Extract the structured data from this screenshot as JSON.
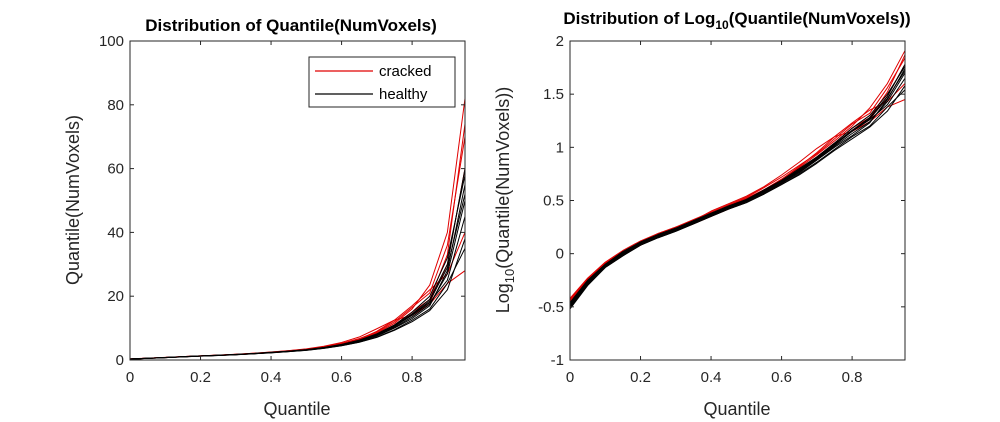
{
  "chart_data": [
    {
      "type": "line",
      "title": "Distribution of Quantile(NumVoxels)",
      "xlabel": "Quantile",
      "ylabel": "Quantile(NumVoxels)",
      "xlim": [
        0,
        0.95
      ],
      "ylim": [
        0,
        100
      ],
      "xticks": [
        "0",
        "0.2",
        "0.4",
        "0.6",
        "0.8"
      ],
      "xtick_values": [
        0,
        0.2,
        0.4,
        0.6,
        0.8
      ],
      "yticks": [
        "0",
        "20",
        "40",
        "60",
        "80",
        "100"
      ],
      "ytick_values": [
        0,
        20,
        40,
        60,
        80,
        100
      ],
      "grid": false,
      "legend": {
        "position": "top-right",
        "entries": [
          {
            "label": "cracked",
            "color": "#e00000"
          },
          {
            "label": "healthy",
            "color": "#000000"
          }
        ]
      },
      "x": [
        0,
        0.05,
        0.1,
        0.15,
        0.2,
        0.25,
        0.3,
        0.35,
        0.4,
        0.45,
        0.5,
        0.55,
        0.6,
        0.65,
        0.7,
        0.75,
        0.8,
        0.85,
        0.9,
        0.95
      ],
      "series": [
        {
          "group": "cracked",
          "values": [
            0.32,
            0.55,
            0.8,
            1.05,
            1.3,
            1.5,
            1.75,
            2.05,
            2.4,
            2.8,
            3.3,
            4.0,
            5.0,
            6.4,
            8.5,
            11.5,
            16.0,
            23.5,
            40.0,
            82.0
          ]
        },
        {
          "group": "cracked",
          "values": [
            0.3,
            0.52,
            0.76,
            1.0,
            1.25,
            1.45,
            1.7,
            2.0,
            2.35,
            2.75,
            3.2,
            3.9,
            4.9,
            6.2,
            8.2,
            11.0,
            15.0,
            19.0,
            33.0,
            74.0
          ]
        },
        {
          "group": "cracked",
          "values": [
            0.32,
            0.54,
            0.78,
            1.03,
            1.27,
            1.48,
            1.72,
            2.02,
            2.38,
            2.78,
            3.25,
            3.95,
            5.0,
            6.5,
            9.0,
            12.5,
            17.0,
            22.0,
            27.0,
            40.0
          ]
        },
        {
          "group": "cracked",
          "values": [
            0.33,
            0.56,
            0.8,
            1.05,
            1.3,
            1.52,
            1.78,
            2.1,
            2.5,
            2.95,
            3.5,
            4.3,
            5.5,
            7.2,
            9.8,
            12.5,
            14.0,
            17.5,
            24.0,
            28.0
          ]
        },
        {
          "group": "cracked",
          "values": [
            0.31,
            0.53,
            0.77,
            1.02,
            1.26,
            1.47,
            1.71,
            2.0,
            2.34,
            2.72,
            3.18,
            3.85,
            4.8,
            6.1,
            7.9,
            10.5,
            14.5,
            18.0,
            30.0,
            60.0
          ]
        },
        {
          "group": "cracked",
          "values": [
            0.34,
            0.57,
            0.81,
            1.06,
            1.31,
            1.53,
            1.79,
            2.1,
            2.48,
            2.9,
            3.42,
            4.15,
            5.2,
            6.7,
            8.8,
            12.0,
            16.5,
            21.0,
            36.0,
            70.0
          ]
        },
        {
          "group": "healthy",
          "values": [
            0.3,
            0.52,
            0.76,
            1.0,
            1.24,
            1.44,
            1.68,
            1.96,
            2.3,
            2.68,
            3.1,
            3.75,
            4.6,
            5.8,
            7.5,
            10.0,
            13.0,
            17.0,
            28.0,
            55.0
          ]
        },
        {
          "group": "healthy",
          "values": [
            0.31,
            0.53,
            0.77,
            1.01,
            1.25,
            1.46,
            1.7,
            1.99,
            2.33,
            2.72,
            3.16,
            3.82,
            4.7,
            6.0,
            7.8,
            10.5,
            14.0,
            18.0,
            25.0,
            45.0
          ]
        },
        {
          "group": "healthy",
          "values": [
            0.3,
            0.51,
            0.75,
            0.99,
            1.23,
            1.43,
            1.66,
            1.94,
            2.27,
            2.64,
            3.05,
            3.68,
            4.5,
            5.6,
            7.2,
            9.5,
            12.5,
            16.0,
            24.0,
            35.0
          ]
        },
        {
          "group": "healthy",
          "values": [
            0.32,
            0.54,
            0.78,
            1.02,
            1.27,
            1.48,
            1.72,
            2.02,
            2.37,
            2.76,
            3.22,
            3.9,
            4.8,
            6.1,
            8.0,
            10.8,
            14.5,
            19.0,
            30.0,
            60.0
          ]
        },
        {
          "group": "healthy",
          "values": [
            0.31,
            0.52,
            0.76,
            1.0,
            1.24,
            1.45,
            1.69,
            1.97,
            2.31,
            2.69,
            3.12,
            3.78,
            4.65,
            5.9,
            7.6,
            10.2,
            13.5,
            17.5,
            27.0,
            50.0
          ]
        },
        {
          "group": "healthy",
          "values": [
            0.33,
            0.55,
            0.79,
            1.04,
            1.28,
            1.5,
            1.75,
            2.05,
            2.41,
            2.8,
            3.27,
            3.97,
            4.9,
            6.25,
            8.2,
            11.0,
            15.0,
            20.0,
            32.0,
            58.0
          ]
        },
        {
          "group": "healthy",
          "values": [
            0.3,
            0.5,
            0.74,
            0.98,
            1.22,
            1.42,
            1.65,
            1.93,
            2.25,
            2.62,
            3.03,
            3.65,
            4.45,
            5.55,
            7.1,
            9.3,
            12.0,
            15.5,
            22.0,
            38.0
          ]
        },
        {
          "group": "healthy",
          "values": [
            0.31,
            0.53,
            0.77,
            1.01,
            1.26,
            1.47,
            1.71,
            2.0,
            2.34,
            2.73,
            3.18,
            3.85,
            4.75,
            6.05,
            7.9,
            10.6,
            14.2,
            18.5,
            29.0,
            52.0
          ]
        }
      ]
    },
    {
      "type": "line",
      "title_parts": {
        "pre": "Distribution of Log",
        "sub": "10",
        "post": "(Quantile(NumVoxels))"
      },
      "xlabel": "Quantile",
      "ylabel_parts": {
        "pre": "Log",
        "sub": "10",
        "post": "(Quantile(NumVoxels))"
      },
      "xlim": [
        0,
        0.95
      ],
      "ylim": [
        -1,
        2
      ],
      "xticks": [
        "0",
        "0.2",
        "0.4",
        "0.6",
        "0.8"
      ],
      "xtick_values": [
        0,
        0.2,
        0.4,
        0.6,
        0.8
      ],
      "yticks": [
        "-1",
        "-0.5",
        "0",
        "0.5",
        "1",
        "1.5",
        "2"
      ],
      "ytick_values": [
        -1,
        -0.5,
        0,
        0.5,
        1,
        1.5,
        2
      ],
      "grid": false,
      "x": [
        0,
        0.05,
        0.1,
        0.15,
        0.2,
        0.25,
        0.3,
        0.35,
        0.4,
        0.45,
        0.5,
        0.55,
        0.6,
        0.65,
        0.7,
        0.75,
        0.8,
        0.85,
        0.9,
        0.95
      ],
      "series": [
        {
          "group": "cracked",
          "values": [
            -0.43,
            -0.24,
            -0.09,
            0.02,
            0.11,
            0.18,
            0.24,
            0.31,
            0.38,
            0.45,
            0.52,
            0.6,
            0.7,
            0.81,
            0.93,
            1.06,
            1.2,
            1.37,
            1.6,
            1.91
          ]
        },
        {
          "group": "cracked",
          "values": [
            -0.46,
            -0.26,
            -0.11,
            0.0,
            0.1,
            0.17,
            0.23,
            0.3,
            0.37,
            0.44,
            0.51,
            0.59,
            0.69,
            0.79,
            0.91,
            1.04,
            1.18,
            1.28,
            1.52,
            1.87
          ]
        },
        {
          "group": "cracked",
          "values": [
            -0.45,
            -0.25,
            -0.1,
            0.01,
            0.1,
            0.18,
            0.24,
            0.3,
            0.38,
            0.45,
            0.52,
            0.6,
            0.7,
            0.82,
            0.95,
            1.1,
            1.23,
            1.35,
            1.43,
            1.6
          ]
        },
        {
          "group": "cracked",
          "values": [
            -0.44,
            -0.24,
            -0.09,
            0.02,
            0.11,
            0.19,
            0.25,
            0.31,
            0.4,
            0.47,
            0.54,
            0.63,
            0.74,
            0.86,
            0.99,
            1.1,
            1.15,
            1.24,
            1.38,
            1.45
          ]
        },
        {
          "group": "cracked",
          "values": [
            -0.49,
            -0.27,
            -0.12,
            -0.01,
            0.08,
            0.16,
            0.22,
            0.28,
            0.35,
            0.42,
            0.49,
            0.57,
            0.66,
            0.77,
            0.89,
            1.02,
            1.16,
            1.26,
            1.48,
            1.78
          ]
        },
        {
          "group": "cracked",
          "values": [
            -0.42,
            -0.23,
            -0.08,
            0.03,
            0.12,
            0.19,
            0.25,
            0.32,
            0.39,
            0.46,
            0.53,
            0.62,
            0.72,
            0.83,
            0.94,
            1.08,
            1.22,
            1.32,
            1.56,
            1.84
          ]
        },
        {
          "group": "healthy",
          "values": [
            -0.5,
            -0.28,
            -0.12,
            -0.01,
            0.09,
            0.16,
            0.22,
            0.29,
            0.36,
            0.43,
            0.49,
            0.57,
            0.66,
            0.76,
            0.88,
            1.0,
            1.11,
            1.23,
            1.45,
            1.74
          ]
        },
        {
          "group": "healthy",
          "values": [
            -0.48,
            -0.27,
            -0.11,
            0.0,
            0.1,
            0.17,
            0.23,
            0.3,
            0.37,
            0.43,
            0.5,
            0.58,
            0.67,
            0.78,
            0.89,
            1.02,
            1.15,
            1.26,
            1.4,
            1.65
          ]
        },
        {
          "group": "healthy",
          "values": [
            -0.51,
            -0.29,
            -0.13,
            -0.02,
            0.08,
            0.15,
            0.21,
            0.28,
            0.35,
            0.42,
            0.48,
            0.56,
            0.65,
            0.75,
            0.86,
            0.98,
            1.1,
            1.2,
            1.38,
            1.54
          ]
        },
        {
          "group": "healthy",
          "values": [
            -0.47,
            -0.26,
            -0.1,
            0.01,
            0.11,
            0.18,
            0.24,
            0.31,
            0.38,
            0.44,
            0.51,
            0.59,
            0.68,
            0.79,
            0.9,
            1.03,
            1.16,
            1.28,
            1.48,
            1.78
          ]
        },
        {
          "group": "healthy",
          "values": [
            -0.49,
            -0.28,
            -0.12,
            0.0,
            0.09,
            0.16,
            0.22,
            0.29,
            0.36,
            0.43,
            0.5,
            0.58,
            0.67,
            0.77,
            0.88,
            1.01,
            1.13,
            1.24,
            1.43,
            1.7
          ]
        },
        {
          "group": "healthy",
          "values": [
            -0.46,
            -0.25,
            -0.1,
            0.02,
            0.11,
            0.18,
            0.24,
            0.31,
            0.38,
            0.45,
            0.51,
            0.6,
            0.69,
            0.8,
            0.91,
            1.04,
            1.18,
            1.3,
            1.5,
            1.76
          ]
        },
        {
          "group": "healthy",
          "values": [
            -0.52,
            -0.3,
            -0.13,
            -0.02,
            0.08,
            0.15,
            0.21,
            0.28,
            0.35,
            0.42,
            0.48,
            0.56,
            0.65,
            0.74,
            0.85,
            0.97,
            1.08,
            1.19,
            1.34,
            1.58
          ]
        },
        {
          "group": "healthy",
          "values": [
            -0.48,
            -0.27,
            -0.11,
            0.0,
            0.1,
            0.17,
            0.23,
            0.3,
            0.37,
            0.44,
            0.5,
            0.59,
            0.68,
            0.78,
            0.9,
            1.03,
            1.15,
            1.27,
            1.46,
            1.72
          ]
        }
      ]
    }
  ]
}
